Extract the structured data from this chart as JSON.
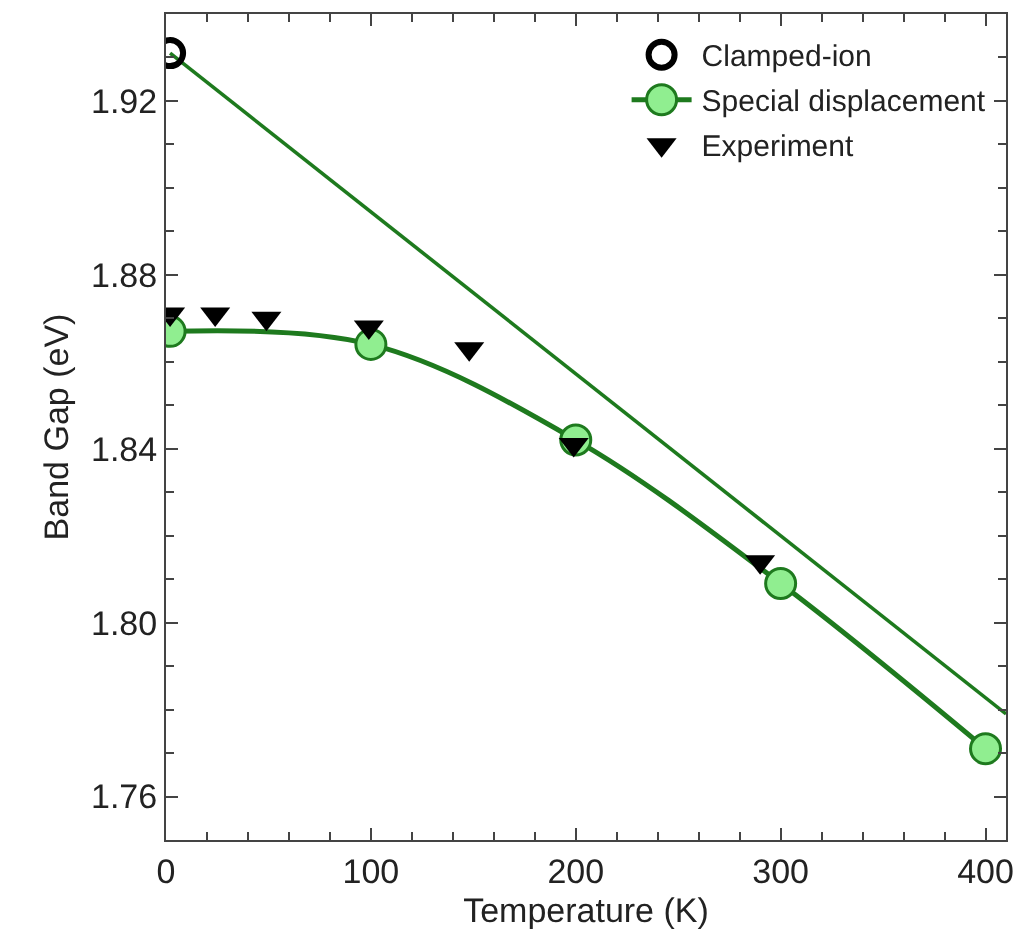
{
  "chart_data": {
    "type": "scatter",
    "xlabel": "Temperature (K)",
    "ylabel": "Band Gap (eV)",
    "xlim": [
      0,
      410
    ],
    "xticks": [
      0,
      100,
      200,
      300,
      400
    ],
    "ylim": [
      1.75,
      1.94
    ],
    "yticks": [
      {
        "value": 1.76,
        "label": "1.76"
      },
      {
        "value": 1.8,
        "label": "1.80"
      },
      {
        "value": 1.84,
        "label": "1.84"
      },
      {
        "value": 1.88,
        "label": "1.88"
      },
      {
        "value": 1.92,
        "label": "1.92"
      }
    ],
    "legend": "top right",
    "series": [
      {
        "type": "line",
        "color": "#1e7a1e",
        "x": [
          2,
          410
        ],
        "values": [
          1.931,
          1.779
        ],
        "marker": "none"
      },
      {
        "name": "Clamped-ion",
        "color": "#000000",
        "x": [
          2
        ],
        "values": [
          1.931
        ],
        "marker": "circle"
      },
      {
        "name": "Special displacement",
        "type": "line",
        "color": "#1e7a1e",
        "x": [
          2,
          100,
          200,
          300,
          400
        ],
        "values": [
          1.867,
          1.864,
          1.842,
          1.809,
          1.771
        ],
        "marker": "circle"
      },
      {
        "name": "Experiment",
        "color": "#000000",
        "x": [
          2,
          24,
          49,
          99,
          148,
          199,
          290
        ],
        "values": [
          1.871,
          1.871,
          1.87,
          1.868,
          1.863,
          1.841,
          1.814
        ],
        "marker": "triangle"
      }
    ]
  }
}
